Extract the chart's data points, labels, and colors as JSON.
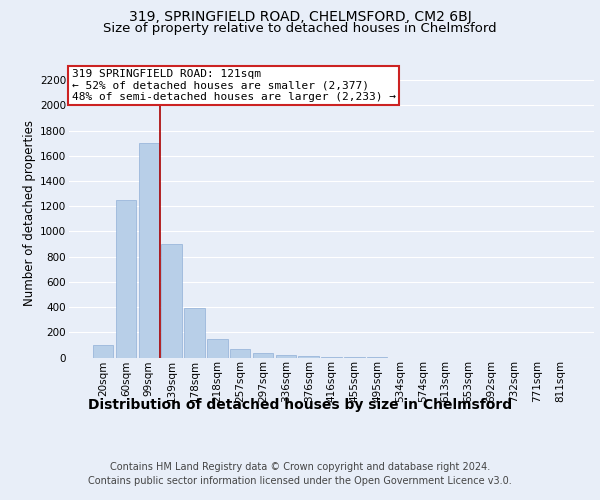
{
  "title1": "319, SPRINGFIELD ROAD, CHELMSFORD, CM2 6BJ",
  "title2": "Size of property relative to detached houses in Chelmsford",
  "xlabel": "Distribution of detached houses by size in Chelmsford",
  "ylabel": "Number of detached properties",
  "footer1": "Contains HM Land Registry data © Crown copyright and database right 2024.",
  "footer2": "Contains public sector information licensed under the Open Government Licence v3.0.",
  "annotation_line1": "319 SPRINGFIELD ROAD: 121sqm",
  "annotation_line2": "← 52% of detached houses are smaller (2,377)",
  "annotation_line3": "48% of semi-detached houses are larger (2,233) →",
  "bar_labels": [
    "20sqm",
    "60sqm",
    "99sqm",
    "139sqm",
    "178sqm",
    "218sqm",
    "257sqm",
    "297sqm",
    "336sqm",
    "376sqm",
    "416sqm",
    "455sqm",
    "495sqm",
    "534sqm",
    "574sqm",
    "613sqm",
    "653sqm",
    "692sqm",
    "732sqm",
    "771sqm",
    "811sqm"
  ],
  "bar_values": [
    100,
    1250,
    1700,
    900,
    390,
    150,
    70,
    35,
    20,
    8,
    3,
    2,
    1,
    0,
    0,
    0,
    0,
    0,
    0,
    0,
    0
  ],
  "bar_color": "#b8cfe8",
  "bar_edge_color": "#90b0d8",
  "background_color": "#e8eef8",
  "plot_background": "#e8eef8",
  "grid_color": "#ffffff",
  "vline_color": "#aa0000",
  "vline_x_index": 2,
  "annotation_box_facecolor": "#ffffff",
  "annotation_box_edgecolor": "#cc2222",
  "ylim": [
    0,
    2300
  ],
  "yticks": [
    0,
    200,
    400,
    600,
    800,
    1000,
    1200,
    1400,
    1600,
    1800,
    2000,
    2200
  ],
  "title1_fontsize": 10,
  "title2_fontsize": 9.5,
  "xlabel_fontsize": 10,
  "ylabel_fontsize": 8.5,
  "tick_fontsize": 7.5,
  "footer_fontsize": 7,
  "annotation_fontsize": 8
}
